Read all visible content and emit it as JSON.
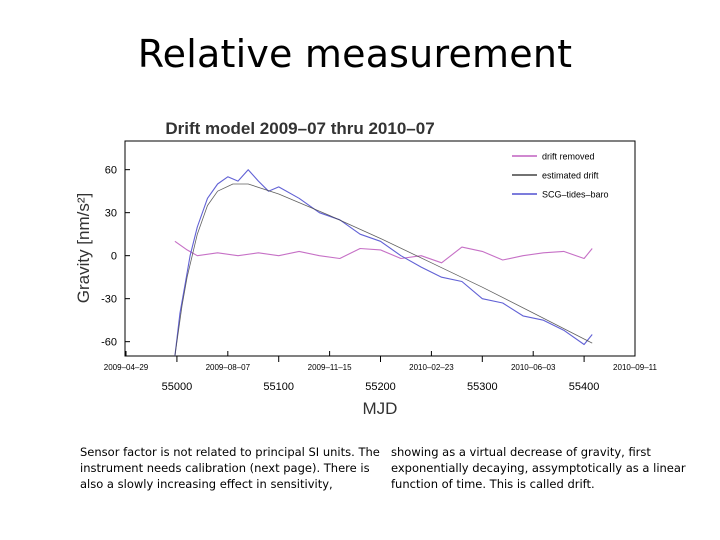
{
  "slide": {
    "title": "Relative measurement",
    "caption_left": "Sensor factor is not related to principal SI units. The instrument needs calibration (next page). There is also a slowly increasing effect in sensitivity,",
    "caption_right": "showing as a virtual decrease of gravity, first exponentially decaying, assymptotically as a linear function of time. This is called drift."
  },
  "chart_data": {
    "type": "line",
    "title": "Drift model 2009–07 thru 2010–07",
    "xlabel": "MJD",
    "ylabel": "Gravity [nm/s²]",
    "xlim": [
      54949,
      55450
    ],
    "ylim": [
      -70,
      80
    ],
    "x_ticks": [
      55000,
      55100,
      55200,
      55300,
      55400
    ],
    "y_ticks": [
      -60,
      -30,
      0,
      30,
      60
    ],
    "date_ticks": [
      {
        "mjd": 54950,
        "label": "2009–04–29"
      },
      {
        "mjd": 55050,
        "label": "2009–08–07"
      },
      {
        "mjd": 55150,
        "label": "2009–11–15"
      },
      {
        "mjd": 55250,
        "label": "2010–02–23"
      },
      {
        "mjd": 55350,
        "label": "2010–06–03"
      },
      {
        "mjd": 55450,
        "label": "2010–09–11"
      }
    ],
    "legend_position": "top-right",
    "grid": false,
    "series": [
      {
        "name": "drift removed",
        "color": "#c060c0",
        "x": [
          54998,
          55010,
          55020,
          55040,
          55060,
          55080,
          55100,
          55120,
          55140,
          55160,
          55180,
          55200,
          55220,
          55240,
          55260,
          55280,
          55300,
          55320,
          55340,
          55360,
          55380,
          55400,
          55408
        ],
        "y": [
          10,
          4,
          0,
          2,
          0,
          2,
          0,
          3,
          0,
          -2,
          5,
          4,
          -2,
          0,
          -5,
          6,
          3,
          -3,
          0,
          2,
          3,
          -2,
          5
        ]
      },
      {
        "name": "estimated drift",
        "color": "#444444",
        "x": [
          54998,
          55005,
          55010,
          55020,
          55030,
          55040,
          55055,
          55070,
          55100,
          55150,
          55200,
          55250,
          55300,
          55350,
          55408
        ],
        "y": [
          -70,
          -35,
          -15,
          15,
          35,
          45,
          50,
          50,
          43,
          28,
          12,
          -5,
          -22,
          -40,
          -61
        ]
      },
      {
        "name": "SCG–tides–baro",
        "color": "#5050d0",
        "x": [
          54998,
          55003,
          55008,
          55013,
          55020,
          55030,
          55040,
          55050,
          55060,
          55070,
          55080,
          55090,
          55100,
          55120,
          55140,
          55160,
          55180,
          55200,
          55220,
          55240,
          55260,
          55280,
          55300,
          55320,
          55340,
          55360,
          55380,
          55400,
          55408
        ],
        "y": [
          -70,
          -40,
          -20,
          0,
          20,
          40,
          50,
          55,
          52,
          60,
          52,
          45,
          48,
          40,
          30,
          25,
          15,
          10,
          0,
          -8,
          -15,
          -18,
          -30,
          -33,
          -42,
          -45,
          -52,
          -62,
          -55
        ]
      }
    ]
  }
}
